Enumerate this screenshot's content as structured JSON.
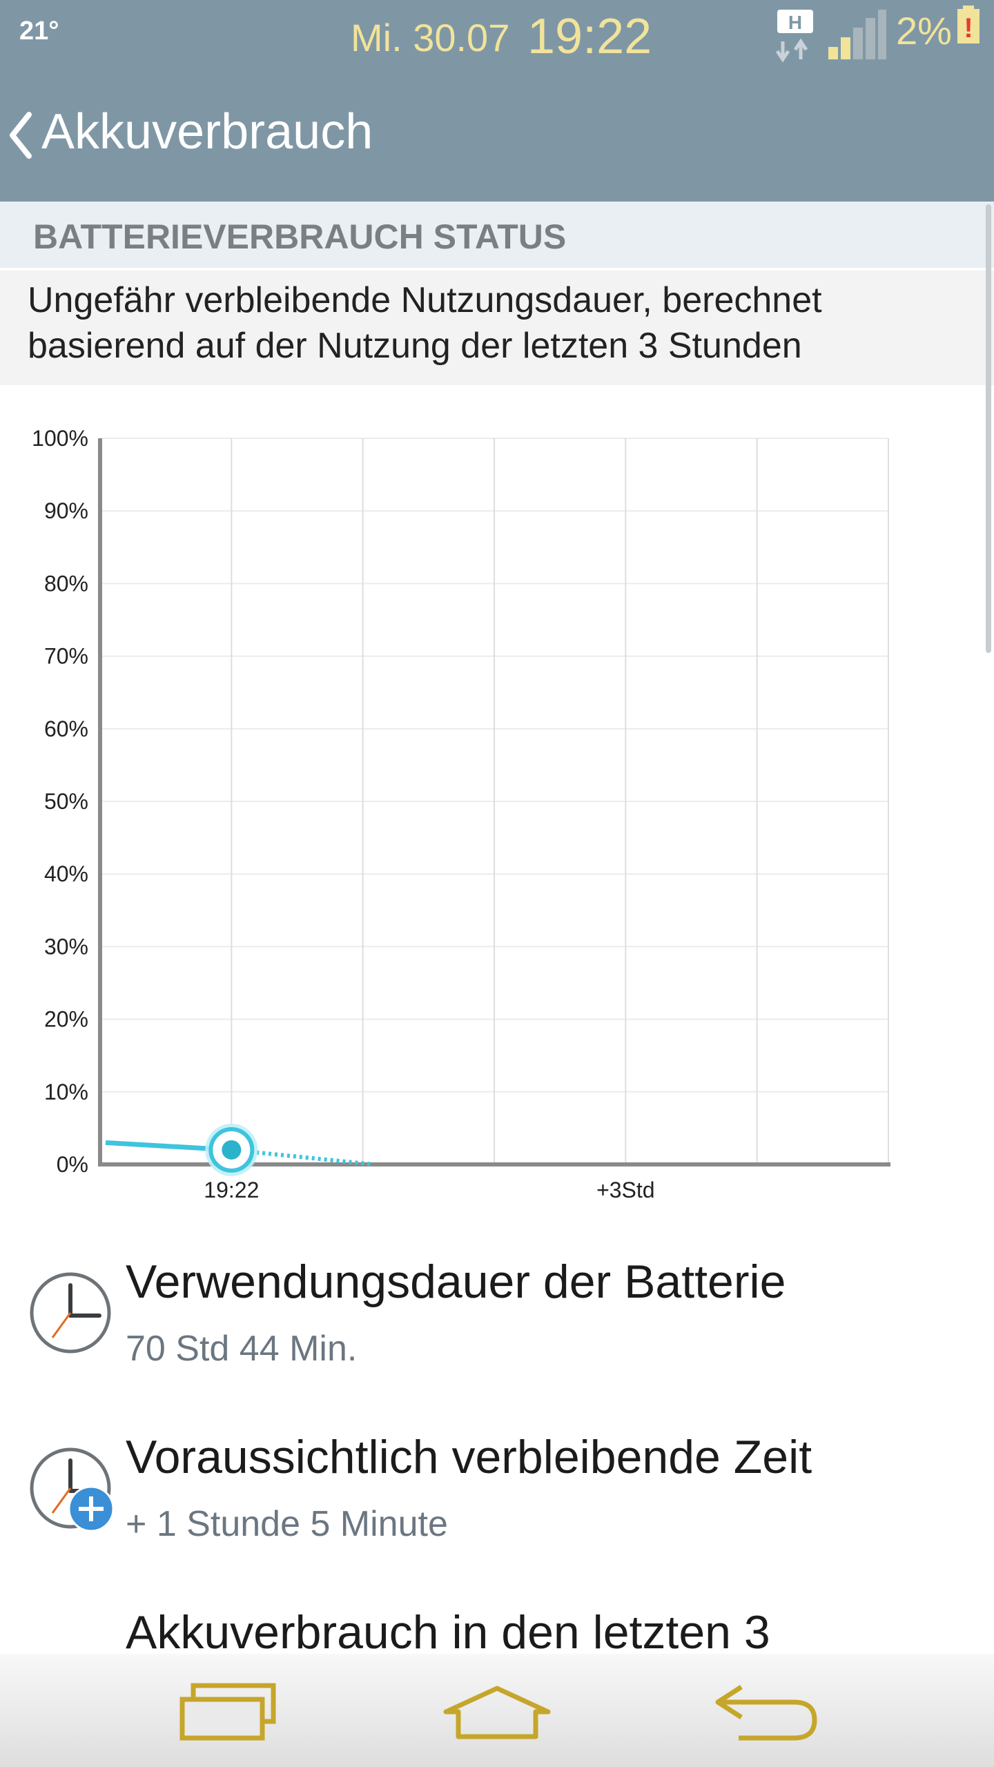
{
  "status_bar": {
    "temperature": "21°",
    "date": "Mi. 30.07",
    "time": "19:22",
    "network_type": "H",
    "battery_percent": "2%",
    "battery_alert": "!",
    "text_color": "#f1e39a"
  },
  "header": {
    "title": "Akkuverbrauch",
    "background": "#7f97a5"
  },
  "section": {
    "title": "BATTERIEVERBRAUCH STATUS",
    "description": "Ungefähr verbleibende Nutzungsdauer, berechnet basierend auf der Nutzung der letzten 3 Stunden"
  },
  "chart_data": {
    "type": "line",
    "ylabel_ticks": [
      "100%",
      "90%",
      "80%",
      "70%",
      "60%",
      "50%",
      "40%",
      "30%",
      "20%",
      "10%",
      "0%"
    ],
    "x_tick_labels": [
      "19:22",
      "+3Std"
    ],
    "ylim": [
      0,
      100
    ],
    "grid": true,
    "series": [
      {
        "style": "solid",
        "color": "#3ec4dd",
        "points": [
          {
            "x": -1,
            "y": 3
          },
          {
            "x": 0,
            "y": 2
          }
        ]
      },
      {
        "style": "dotted",
        "color": "#3ec4dd",
        "points": [
          {
            "x": 0,
            "y": 2
          },
          {
            "x": 1.08,
            "y": 0
          }
        ]
      }
    ],
    "current_marker": {
      "x": 0,
      "y": 2
    }
  },
  "items": [
    {
      "title": "Verwendungsdauer der Batterie",
      "subtitle": "70 Std 44 Min.",
      "icon": "clock-icon"
    },
    {
      "title": "Voraussichtlich verbleibende Zeit",
      "subtitle": "+ 1 Stunde 5 Minute",
      "icon": "clock-plus-icon"
    },
    {
      "title": "Akkuverbrauch in den letzten 3",
      "subtitle": "",
      "icon": ""
    }
  ],
  "nav": {
    "buttons": [
      "recent-apps-icon",
      "home-icon",
      "back-icon"
    ],
    "icon_color": "#c6a62a"
  }
}
